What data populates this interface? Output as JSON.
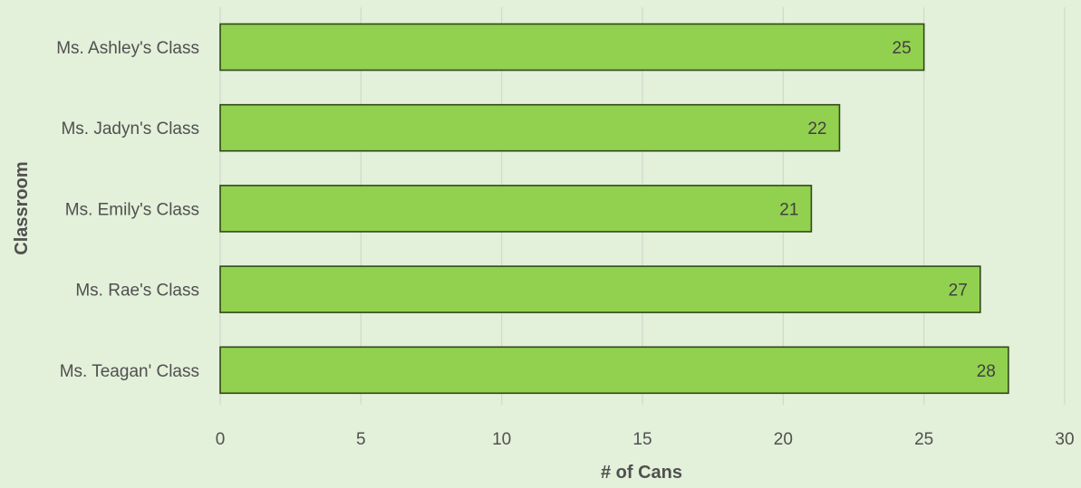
{
  "chart_data": {
    "type": "bar",
    "orientation": "horizontal",
    "categories": [
      "Ms. Ashley's Class",
      "Ms. Jadyn's Class",
      "Ms. Emily's Class",
      "Ms. Rae's Class",
      "Ms. Teagan' Class"
    ],
    "values": [
      25,
      22,
      21,
      27,
      28
    ],
    "data_labels": [
      "25",
      "22",
      "21",
      "27",
      "28"
    ],
    "xlabel": "# of Cans",
    "ylabel": "Classroom",
    "xlim": [
      0,
      30
    ],
    "xticks": [
      0,
      5,
      10,
      15,
      20,
      25,
      30
    ],
    "xtick_labels": [
      "0",
      "5",
      "10",
      "15",
      "20",
      "25",
      "30"
    ],
    "grid": "vertical",
    "legend": "none",
    "colors": {
      "background": "#e3f0da",
      "bar_fill": "#92d050",
      "bar_stroke": "#2f4a17",
      "grid": "#d0d8cb"
    }
  }
}
